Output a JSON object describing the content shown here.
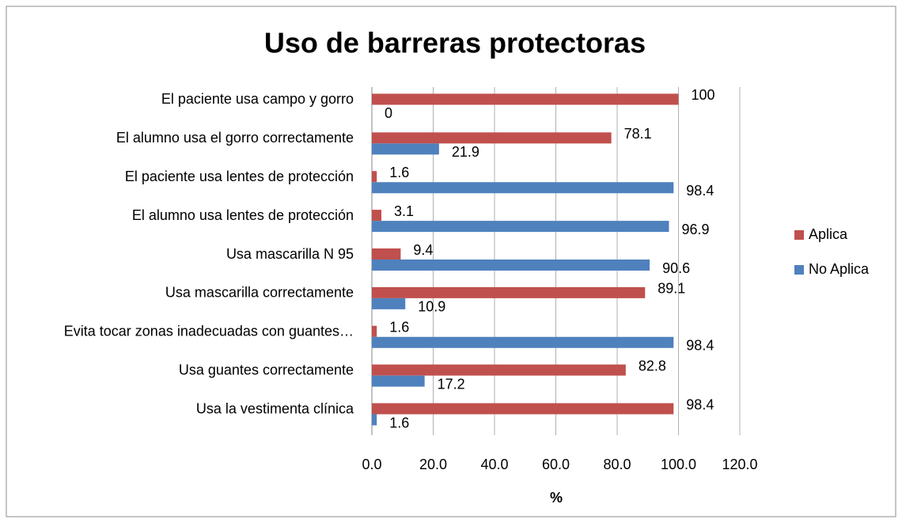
{
  "chart_data": {
    "type": "bar",
    "orientation": "horizontal",
    "title": "Uso de barreras protectoras",
    "xlabel": "%",
    "categories": [
      "El paciente usa campo y gorro",
      "El alumno usa el gorro correctamente",
      "El paciente usa lentes de protección",
      "El alumno usa lentes de protección",
      "Usa mascarilla N 95",
      "Usa mascarilla correctamente",
      "Evita tocar zonas inadecuadas con guantes…",
      "Usa guantes correctamente",
      "Usa la vestimenta clínica"
    ],
    "series": [
      {
        "name": "Aplica",
        "color": "#c0504d",
        "values": [
          100,
          78.1,
          1.6,
          3.1,
          9.4,
          89.1,
          1.6,
          82.8,
          98.4
        ]
      },
      {
        "name": "No Aplica",
        "color": "#4f81bd",
        "values": [
          0,
          21.9,
          98.4,
          96.9,
          90.6,
          10.9,
          98.4,
          17.2,
          1.6
        ]
      }
    ],
    "xlim": [
      0,
      120
    ],
    "xticks": [
      {
        "value": 0,
        "label": "0.0"
      },
      {
        "value": 20,
        "label": "20.0"
      },
      {
        "value": 40,
        "label": "40.0"
      },
      {
        "value": 60,
        "label": "60.0"
      },
      {
        "value": 80,
        "label": "80.0"
      },
      {
        "value": 100,
        "label": "100.0"
      },
      {
        "value": 120,
        "label": "120.0"
      }
    ],
    "grid": true,
    "legend": "right"
  }
}
